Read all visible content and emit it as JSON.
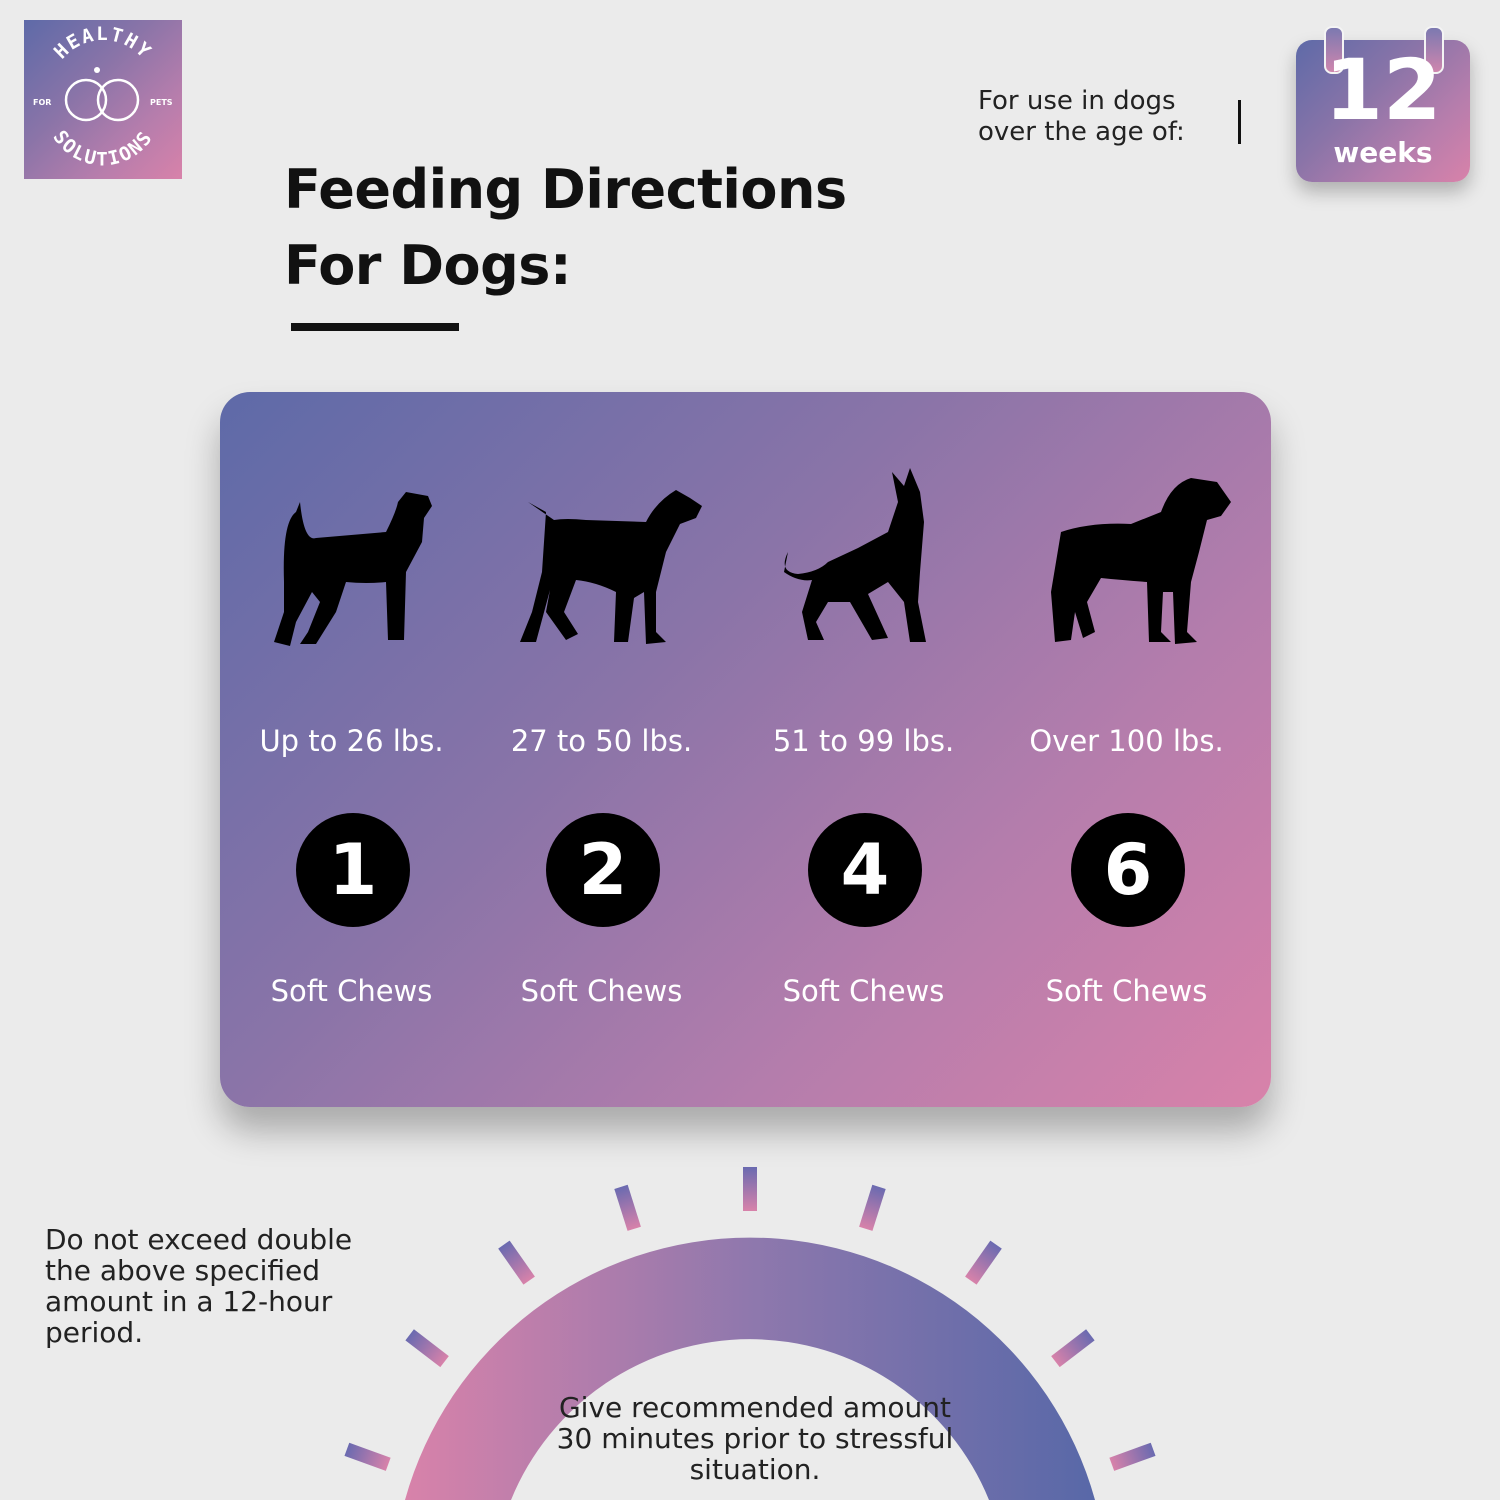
{
  "logo": {
    "top_text": "HEALTHY",
    "bottom_text": "SOLUTIONS",
    "left_text": "FOR",
    "right_text": "PETS"
  },
  "title": {
    "line1": "Feeding Directions",
    "line2": "For Dogs:"
  },
  "age": {
    "label_line1": "For use in dogs",
    "label_line2": "over the age of:",
    "number": "12",
    "unit": "weeks"
  },
  "colors": {
    "gradient_start": "#5e6aa8",
    "gradient_end": "#d882aa",
    "background": "#ebebeb"
  },
  "dosage": [
    {
      "weight": "Up to 26 lbs.",
      "count": "1",
      "unit": "Soft Chews",
      "icon": "terrier-silhouette-icon"
    },
    {
      "weight": "27 to 50 lbs.",
      "count": "2",
      "unit": "Soft Chews",
      "icon": "mastiff-silhouette-icon"
    },
    {
      "weight": "51 to 99 lbs.",
      "count": "4",
      "unit": "Soft Chews",
      "icon": "shepherd-silhouette-icon"
    },
    {
      "weight": "Over 100 lbs.",
      "count": "6",
      "unit": "Soft Chews",
      "icon": "boxer-silhouette-icon"
    }
  ],
  "warning": "Do not exceed double the above specified amount in a 12-hour period.",
  "timing": "Give recommended amount 30 minutes prior to stressful situation."
}
